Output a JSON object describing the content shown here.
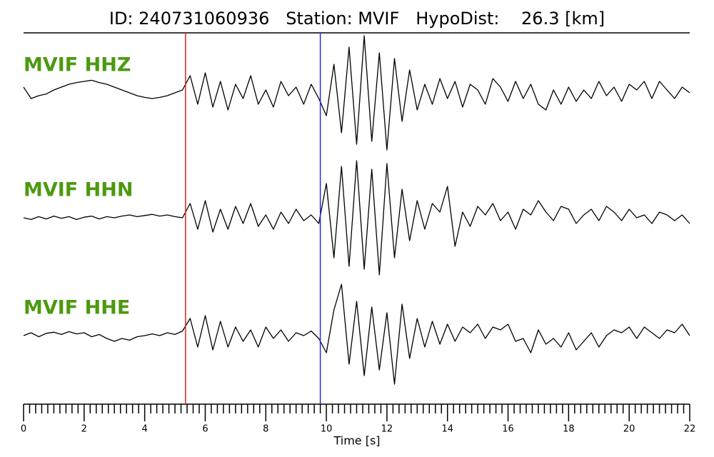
{
  "chart_data": {
    "type": "line",
    "title": "ID: 240731060936   Station: MVIF   HypoDist:    26.3 [km]",
    "xlabel": "Time [s]",
    "xlim": [
      0,
      22
    ],
    "ylim": [
      -1,
      1
    ],
    "xticks": [
      0,
      2,
      4,
      6,
      8,
      10,
      12,
      14,
      16,
      18,
      20,
      22
    ],
    "xminorticks": [
      0.2,
      0.4,
      0.6,
      0.8,
      1,
      1.2,
      1.4,
      1.6,
      1.8,
      2.2,
      2.4,
      2.6,
      2.8,
      3,
      3.2,
      3.4,
      3.6,
      3.8,
      4.2,
      4.4,
      4.6,
      4.8,
      5,
      5.2,
      5.4,
      5.6,
      5.8,
      6.2,
      6.4,
      6.6,
      6.8,
      7,
      7.2,
      7.4,
      7.6,
      7.8,
      8.2,
      8.4,
      8.6,
      8.8,
      9,
      9.2,
      9.4,
      9.6,
      9.8,
      10.2,
      10.4,
      10.6,
      10.8,
      11,
      11.2,
      11.4,
      11.6,
      11.8,
      12.2,
      12.4,
      12.6,
      12.8,
      13,
      13.2,
      13.4,
      13.6,
      13.8,
      14.2,
      14.4,
      14.6,
      14.8,
      15,
      15.2,
      15.4,
      15.6,
      15.8,
      16.2,
      16.4,
      16.6,
      16.8,
      17,
      17.2,
      17.4,
      17.6,
      17.8,
      18.2,
      18.4,
      18.6,
      18.8,
      19,
      19.2,
      19.4,
      19.6,
      19.8,
      20.2,
      20.4,
      20.6,
      20.8,
      21,
      21.2,
      21.4,
      21.6,
      21.8
    ],
    "vlines": [
      {
        "x": 5.35,
        "color": "#e8231f"
      },
      {
        "x": 9.8,
        "color": "#1f2fd8"
      }
    ],
    "label_color": "#4c9a0f",
    "x": [
      0,
      0.25,
      0.5,
      0.75,
      1,
      1.25,
      1.5,
      1.75,
      2,
      2.25,
      2.5,
      2.75,
      3,
      3.25,
      3.5,
      3.75,
      4,
      4.25,
      4.5,
      4.75,
      5,
      5.25,
      5.5,
      5.75,
      6,
      6.25,
      6.5,
      6.75,
      7,
      7.25,
      7.5,
      7.75,
      8,
      8.25,
      8.5,
      8.75,
      9,
      9.25,
      9.5,
      9.75,
      10,
      10.25,
      10.5,
      10.75,
      11,
      11.25,
      11.5,
      11.75,
      12,
      12.25,
      12.5,
      12.75,
      13,
      13.25,
      13.5,
      13.75,
      14,
      14.25,
      14.5,
      14.75,
      15,
      15.25,
      15.5,
      15.75,
      16,
      16.25,
      16.5,
      16.75,
      17,
      17.25,
      17.5,
      17.75,
      18,
      18.25,
      18.5,
      18.75,
      19,
      19.25,
      19.5,
      19.75,
      20,
      20.25,
      20.5,
      20.75,
      21,
      21.25,
      21.5,
      21.75,
      22
    ],
    "series": [
      {
        "name": "MVIF HHZ",
        "color": "#000000",
        "values": [
          0.1,
          -0.1,
          -0.05,
          -0.02,
          0.05,
          0.1,
          0.15,
          0.18,
          0.2,
          0.22,
          0.18,
          0.15,
          0.1,
          0.05,
          0,
          -0.05,
          -0.08,
          -0.1,
          -0.08,
          -0.05,
          0,
          0.05,
          0.3,
          -0.2,
          0.35,
          -0.25,
          0.2,
          -0.3,
          0.15,
          -0.1,
          0.3,
          -0.2,
          0.05,
          -0.25,
          0.2,
          -0.05,
          0.1,
          -0.2,
          0.15,
          -0.1,
          -0.4,
          0.5,
          -0.7,
          0.8,
          -0.9,
          1.0,
          -0.85,
          0.7,
          -1.0,
          0.6,
          -0.5,
          0.4,
          -0.3,
          0.15,
          -0.2,
          0.25,
          -0.1,
          0.2,
          -0.25,
          0.15,
          0.05,
          -0.2,
          0.25,
          0.1,
          -0.15,
          0.2,
          -0.1,
          0.15,
          -0.2,
          -0.3,
          0.05,
          -0.2,
          0.1,
          -0.15,
          0.05,
          -0.1,
          0.2,
          -0.05,
          0.1,
          -0.15,
          0.15,
          0.05,
          0.2,
          -0.1,
          0.2,
          0.05,
          -0.1,
          0.1,
          0
        ]
      },
      {
        "name": "MVIF HHN",
        "color": "#000000",
        "values": [
          0,
          -0.03,
          0.02,
          -0.02,
          0.03,
          -0.01,
          0.02,
          -0.03,
          0.01,
          0.03,
          -0.02,
          0.02,
          0,
          0.03,
          0.05,
          0.02,
          0.04,
          0.06,
          0.03,
          0.05,
          0.02,
          0,
          0.25,
          -0.2,
          0.3,
          -0.25,
          0.15,
          -0.2,
          0.2,
          -0.1,
          0.25,
          -0.15,
          0.05,
          -0.2,
          0.1,
          -0.1,
          0.15,
          -0.05,
          0.05,
          -0.1,
          0.6,
          -0.7,
          0.9,
          -0.85,
          1.0,
          -0.9,
          0.85,
          -1.0,
          0.95,
          -0.7,
          0.5,
          -0.4,
          0.3,
          -0.2,
          0.25,
          0.1,
          0.55,
          -0.5,
          0.1,
          -0.15,
          0.2,
          0.05,
          0.25,
          -0.05,
          0.1,
          -0.2,
          0.15,
          0.05,
          0.3,
          0.1,
          -0.05,
          0.2,
          0.15,
          -0.1,
          0.05,
          0.15,
          -0.05,
          0.2,
          0.1,
          -0.05,
          0.15,
          0,
          0.05,
          -0.1,
          0.1,
          0.05,
          -0.05,
          0.05,
          -0.1
        ]
      },
      {
        "name": "MVIF HHE",
        "color": "#000000",
        "values": [
          0,
          0.05,
          -0.02,
          0.04,
          0.06,
          0.02,
          0.07,
          0.03,
          0.05,
          -0.02,
          0.02,
          -0.05,
          -0.1,
          -0.05,
          -0.08,
          -0.02,
          0,
          0.03,
          0,
          0.05,
          0.02,
          0.08,
          0.3,
          -0.2,
          0.35,
          -0.25,
          0.25,
          -0.2,
          0.15,
          -0.1,
          0.1,
          -0.2,
          0.15,
          -0.05,
          0.1,
          -0.1,
          0.05,
          0,
          0.08,
          -0.05,
          -0.3,
          0.45,
          0.9,
          -0.5,
          0.6,
          -0.7,
          0.5,
          -0.6,
          0.4,
          -0.85,
          0.55,
          -0.4,
          0.3,
          -0.2,
          0.25,
          -0.15,
          0.2,
          -0.1,
          0.15,
          0.05,
          0.2,
          -0.05,
          0.15,
          0.1,
          0.2,
          -0.1,
          -0.05,
          -0.3,
          0.1,
          -0.15,
          -0.05,
          -0.2,
          0.05,
          -0.25,
          -0.1,
          0.05,
          -0.2,
          0.0,
          0.1,
          0.05,
          0.15,
          -0.05,
          0.15,
          0.05,
          -0.05,
          0.1,
          0.05,
          0.2,
          0.0
        ]
      }
    ]
  }
}
